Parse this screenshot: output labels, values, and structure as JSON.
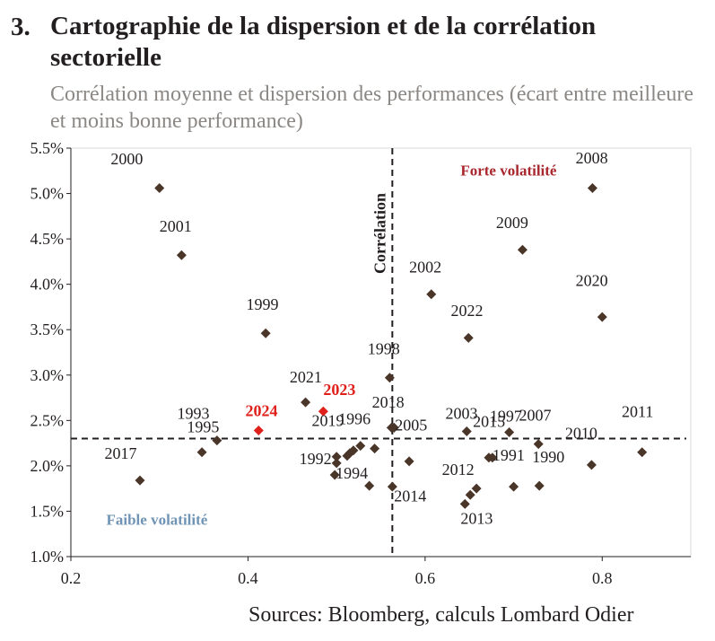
{
  "header": {
    "number": "3.",
    "title": "Cartographie de la dispersion et de la corrélation sectorielle",
    "subtitle": "Corrélation moyenne et dispersion des performances (écart entre meilleure et moins bonne performance)"
  },
  "footer": {
    "source": "Sources: Bloomberg, calculs Lombard Odier"
  },
  "colors": {
    "point": "#4a3529",
    "highlight": "#e0201b",
    "axis": "#231f20",
    "grid": "#d9d9d9",
    "high_vol_label": "#a8272d",
    "low_vol_label": "#6f94b5",
    "tick": "#231f20"
  },
  "chart_data": {
    "type": "scatter",
    "xlabel": "",
    "ylabel": "",
    "xlim": [
      0.2,
      0.9
    ],
    "ylim": [
      0.01,
      0.055
    ],
    "x_ticks": [
      "0.2",
      "0.4",
      "0.6",
      "0.8"
    ],
    "x_tick_values": [
      0.2,
      0.4,
      0.6,
      0.8
    ],
    "y_ticks": [
      "1.0%",
      "1.5%",
      "2.0%",
      "2.5%",
      "3.0%",
      "3.5%",
      "4.0%",
      "4.5%",
      "5.0%",
      "5.5%"
    ],
    "y_tick_values": [
      0.01,
      0.015,
      0.02,
      0.025,
      0.03,
      0.035,
      0.04,
      0.045,
      0.05,
      0.055
    ],
    "grid": false,
    "reference_lines": {
      "vertical_x": 0.563,
      "horizontal_y": 0.023,
      "vertical_label": "Corrélation"
    },
    "annotations": [
      {
        "text": "Forte volatilité",
        "x": 0.64,
        "y": 0.052,
        "style": "high"
      },
      {
        "text": "Faible volatilité",
        "x": 0.24,
        "y": 0.0135,
        "style": "low"
      }
    ],
    "points": [
      {
        "label": "2000",
        "x": 0.3,
        "y": 0.0506,
        "lx": -0.055,
        "ly": 0.0026
      },
      {
        "label": "2001",
        "x": 0.325,
        "y": 0.0432,
        "lx": -0.025,
        "ly": 0.0026
      },
      {
        "label": "1999",
        "x": 0.42,
        "y": 0.0346,
        "lx": -0.022,
        "ly": 0.0026
      },
      {
        "label": "2021",
        "x": 0.465,
        "y": 0.027,
        "lx": -0.018,
        "ly": 0.0022
      },
      {
        "label": "2023",
        "x": 0.485,
        "y": 0.026,
        "lx": 0.0,
        "ly": 0.0018,
        "highlight": true
      },
      {
        "label": "2024",
        "x": 0.412,
        "y": 0.0239,
        "lx": -0.015,
        "ly": 0.0016,
        "highlight": true
      },
      {
        "label": "1993",
        "x": 0.365,
        "y": 0.0228,
        "lx": -0.045,
        "ly": 0.0024
      },
      {
        "label": "1995",
        "x": 0.348,
        "y": 0.0215,
        "lx": -0.017,
        "ly": 0.0022
      },
      {
        "label": "2017",
        "x": 0.278,
        "y": 0.0184,
        "lx": -0.04,
        "ly": 0.0024
      },
      {
        "label": "2019",
        "x": 0.5,
        "y": 0.021,
        "lx": -0.028,
        "ly": 0.0034
      },
      {
        "label": "1992",
        "x": 0.498,
        "y": 0.019,
        "lx": -0.04,
        "ly": 0.0012
      },
      {
        "label": "1996",
        "x": 0.527,
        "y": 0.0222,
        "lx": -0.025,
        "ly": 0.0024
      },
      {
        "label": "1994",
        "x": 0.537,
        "y": 0.0178,
        "lx": -0.038,
        "ly": 0.0008
      },
      {
        "label": "1998",
        "x": 0.56,
        "y": 0.0297,
        "lx": -0.025,
        "ly": 0.0026
      },
      {
        "label": "2018",
        "x": 0.565,
        "y": 0.0242,
        "lx": -0.025,
        "ly": 0.0022
      },
      {
        "label": "2005",
        "x": 0.582,
        "y": 0.0205,
        "lx": -0.016,
        "ly": 0.0034
      },
      {
        "label": "2014",
        "x": 0.563,
        "y": 0.0177,
        "lx": 0.002,
        "ly": -0.0016
      },
      {
        "label": "2002",
        "x": 0.607,
        "y": 0.0389,
        "lx": -0.025,
        "ly": 0.0024
      },
      {
        "label": "2022",
        "x": 0.649,
        "y": 0.0341,
        "lx": -0.02,
        "ly": 0.0024
      },
      {
        "label": "2003",
        "x": 0.647,
        "y": 0.0238,
        "lx": -0.024,
        "ly": 0.0014
      },
      {
        "label": "2015",
        "x": 0.672,
        "y": 0.0209,
        "lx": -0.018,
        "ly": 0.0034
      },
      {
        "label": "1997",
        "x": 0.695,
        "y": 0.0237,
        "lx": -0.022,
        "ly": 0.0012
      },
      {
        "label": "2007",
        "x": 0.728,
        "y": 0.0224,
        "lx": -0.022,
        "ly": 0.0026
      },
      {
        "label": "1991",
        "x": 0.676,
        "y": 0.0209,
        "lx": 0.0,
        "ly": -0.0003
      },
      {
        "label": "2012",
        "x": 0.651,
        "y": 0.0168,
        "lx": -0.032,
        "ly": 0.0022
      },
      {
        "label": "2013",
        "x": 0.645,
        "y": 0.0158,
        "lx": -0.005,
        "ly": -0.0022
      },
      {
        "label": "1990",
        "x": 0.729,
        "y": 0.0178,
        "lx": -0.008,
        "ly": 0.0026
      },
      {
        "label": "2008",
        "x": 0.789,
        "y": 0.0506,
        "lx": -0.019,
        "ly": 0.0027
      },
      {
        "label": "2009",
        "x": 0.71,
        "y": 0.0438,
        "lx": -0.03,
        "ly": 0.0024
      },
      {
        "label": "2020",
        "x": 0.8,
        "y": 0.0364,
        "lx": -0.03,
        "ly": 0.0034
      },
      {
        "label": "2010",
        "x": 0.788,
        "y": 0.0201,
        "lx": -0.03,
        "ly": 0.0029
      },
      {
        "label": "2011",
        "x": 0.845,
        "y": 0.0215,
        "lx": -0.023,
        "ly": 0.0039
      },
      {
        "label": "",
        "x": 0.515,
        "y": 0.0214
      },
      {
        "label": "",
        "x": 0.512,
        "y": 0.0211
      },
      {
        "label": "",
        "x": 0.519,
        "y": 0.0217
      },
      {
        "label": "",
        "x": 0.543,
        "y": 0.0219
      },
      {
        "label": "",
        "x": 0.5,
        "y": 0.0203
      },
      {
        "label": "",
        "x": 0.562,
        "y": 0.0242
      },
      {
        "label": "",
        "x": 0.7,
        "y": 0.0177
      },
      {
        "label": "",
        "x": 0.658,
        "y": 0.0175
      }
    ]
  }
}
